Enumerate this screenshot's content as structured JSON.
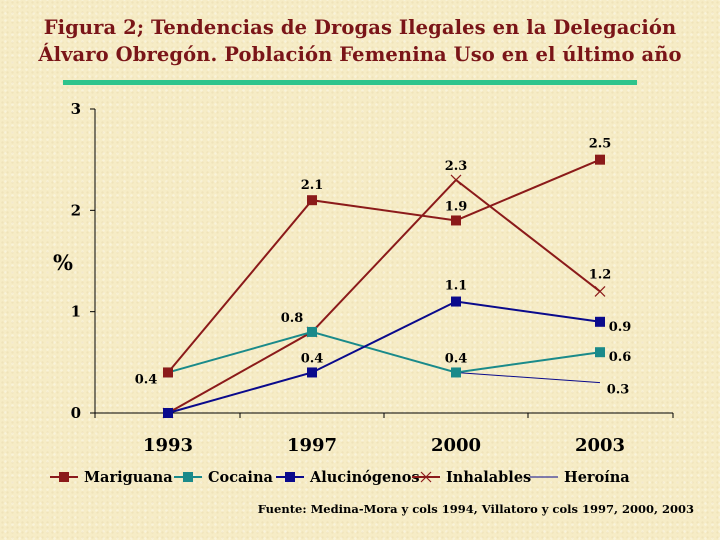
{
  "title_line1": "Figura 2; Tendencias de Drogas Ilegales en  la Delegación",
  "title_line2": "Álvaro Obregón. Población Femenina Uso en el último año",
  "source": "Fuente: Medina-Mora y cols 1994, Villatoro y cols 1997, 2000, 2003",
  "colors": {
    "title": "#7a1518",
    "rule": "#2ec48c",
    "mariguana": "#8b1a1a",
    "cocaina": "#1a8a8a",
    "alucinogenos": "#0a0a8c",
    "inhalables": "#8b1a1a",
    "heroina": "#0a0a8c"
  },
  "chart_data": {
    "type": "line",
    "title": "Figura 2; Tendencias de Drogas Ilegales en  la Delegación Álvaro Obregón. Población Femenina Uso en el último año",
    "xlabel": "",
    "ylabel": "%",
    "categories": [
      "1993",
      "1997",
      "2000",
      "2003"
    ],
    "ylim": [
      0,
      3
    ],
    "yticks": [
      "0",
      "1",
      "2",
      "3"
    ],
    "grid": false,
    "legend_position": "bottom",
    "series": [
      {
        "name": "Mariguana",
        "marker": "square",
        "color": "#8b1a1a",
        "values": [
          0.4,
          2.1,
          1.9,
          2.5
        ],
        "labels": [
          "",
          "2.1",
          "1.9",
          "2.5"
        ]
      },
      {
        "name": "Cocaina",
        "marker": "square",
        "color": "#1a8a8a",
        "values": [
          0.4,
          0.8,
          0.4,
          0.6
        ],
        "labels": [
          "0.4",
          "0.8",
          "0.4",
          "0.6"
        ]
      },
      {
        "name": "Alucinógenos",
        "marker": "square",
        "color": "#0a0a8c",
        "values": [
          0.0,
          0.4,
          1.1,
          0.9
        ],
        "labels": [
          "",
          "0.4",
          "1.1",
          "0.9"
        ]
      },
      {
        "name": "Inhalables",
        "marker": "x",
        "color": "#8b1a1a",
        "values": [
          0.0,
          0.8,
          2.3,
          1.2
        ],
        "labels": [
          "",
          "",
          "2.3",
          "1.2"
        ]
      },
      {
        "name": "Heroína",
        "marker": "none",
        "color": "#0a0a8c",
        "values": [
          null,
          null,
          0.4,
          0.3
        ],
        "labels": [
          "",
          "",
          "",
          "0.3"
        ]
      }
    ]
  }
}
